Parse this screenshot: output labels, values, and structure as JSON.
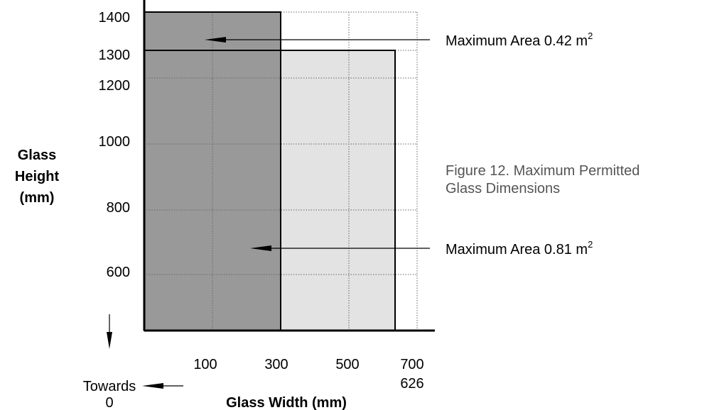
{
  "chart_data": {
    "type": "area",
    "xlabel": "Glass Width (mm)",
    "ylabel_lines": [
      "Glass",
      "Height",
      "(mm)"
    ],
    "x_ticks": [
      "100",
      "300",
      "500",
      "700"
    ],
    "y_ticks": [
      "600",
      "800",
      "1000",
      "1200",
      "1300",
      "1400"
    ],
    "regions": [
      {
        "label": "Maximum Area 0.42 m",
        "label_sup": "2",
        "width_mm": 300,
        "height_mm": 1400,
        "color": "#999999"
      },
      {
        "label": "Maximum Area 0.81 m",
        "label_sup": "2",
        "width_mm": 626,
        "height_mm": 1300,
        "color": "#dedede"
      }
    ],
    "extra_x_label": "626",
    "origin_note": [
      "Towards",
      "0"
    ],
    "caption_lines": [
      "Figure 12. Maximum Permitted",
      "Glass Dimensions"
    ],
    "grid": true
  }
}
